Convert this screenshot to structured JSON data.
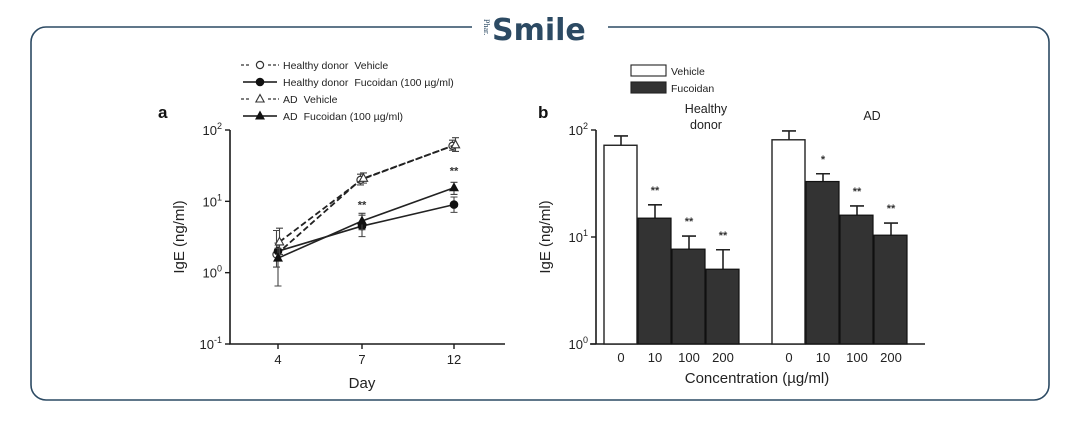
{
  "brand": {
    "prefix": "Phar.",
    "name": "Smile",
    "color": "#2c4a63"
  },
  "chart_data": [
    {
      "panel": "a",
      "type": "line",
      "title": "",
      "xlabel": "Day",
      "ylabel": "IgE (ng/ml)",
      "yscale": "log",
      "ylim": [
        0.1,
        100
      ],
      "y_ticks": [
        {
          "value": 100,
          "base": "10",
          "exp": "2"
        },
        {
          "value": 10,
          "base": "10",
          "exp": "1"
        },
        {
          "value": 1,
          "base": "10",
          "exp": "0"
        },
        {
          "value": 0.1,
          "base": "10",
          "exp": "-1"
        }
      ],
      "x": [
        4,
        7,
        12
      ],
      "x_tick_labels": [
        "4",
        "7",
        "12"
      ],
      "legend_placement": "top",
      "series": [
        {
          "name": "Healthy donor  Vehicle",
          "label_group": "Healthy donor",
          "label_treatment": "Vehicle",
          "marker": "open-circle",
          "line": "dashed",
          "values": [
            1.8,
            20,
            60
          ],
          "err_high": [
            3.9,
            24,
            72
          ],
          "err_low": [
            1.2,
            17,
            52
          ]
        },
        {
          "name": "Healthy donor  Fucoidan (100 µg/ml)",
          "label_group": "Healthy donor",
          "label_treatment": "Fucoidan (100 µg/ml)",
          "marker": "filled-circle",
          "line": "solid",
          "values": [
            2.0,
            4.5,
            9.0
          ],
          "err_high": [
            2.6,
            6.4,
            11.5
          ],
          "err_low": [
            1.5,
            3.2,
            7.0
          ]
        },
        {
          "name": "AD  Vehicle",
          "label_group": "AD",
          "label_treatment": "Vehicle",
          "marker": "open-triangle",
          "line": "dashed",
          "values": [
            2.7,
            21,
            62
          ],
          "err_high": [
            4.2,
            25,
            78
          ],
          "err_low": [
            1.8,
            18,
            50
          ]
        },
        {
          "name": "AD  Fucoidan (100 µg/ml)",
          "label_group": "AD",
          "label_treatment": "Fucoidan (100 µg/ml)",
          "marker": "filled-triangle",
          "line": "solid",
          "values": [
            1.6,
            5.3,
            15.5
          ],
          "err_high": [
            2.2,
            6.8,
            18.5
          ],
          "err_low": [
            0.65,
            4.0,
            12.5
          ]
        }
      ],
      "annotations": [
        {
          "x": 7,
          "text": "**",
          "y": 9.0
        },
        {
          "x": 12,
          "text": "**",
          "y": 27
        }
      ]
    },
    {
      "panel": "b",
      "type": "bar",
      "title": "",
      "xlabel": "Concentration (µg/ml)",
      "ylabel": "IgE (ng/ml)",
      "yscale": "log",
      "ylim": [
        1,
        100
      ],
      "y_ticks": [
        {
          "value": 100,
          "base": "10",
          "exp": "2"
        },
        {
          "value": 10,
          "base": "10",
          "exp": "1"
        },
        {
          "value": 1,
          "base": "10",
          "exp": "0"
        }
      ],
      "legend_placement": "top-left",
      "legend": [
        {
          "name": "Vehicle",
          "color": "#ffffff"
        },
        {
          "name": "Fucoidan",
          "color": "#333333"
        }
      ],
      "groups": [
        {
          "name": "Healthy donor",
          "name_lines": [
            "Healthy",
            "donor"
          ],
          "categories": [
            "0",
            "10",
            "100",
            "200"
          ],
          "treatments": [
            "Vehicle",
            "Fucoidan",
            "Fucoidan",
            "Fucoidan"
          ],
          "values": [
            72,
            15,
            7.7,
            5.0
          ],
          "err_high": [
            88,
            20,
            10.2,
            7.6
          ],
          "significance": [
            "",
            "**",
            "**",
            "**"
          ]
        },
        {
          "name": "AD",
          "name_lines": [
            "AD"
          ],
          "categories": [
            "0",
            "10",
            "100",
            "200"
          ],
          "treatments": [
            "Vehicle",
            "Fucoidan",
            "Fucoidan",
            "Fucoidan"
          ],
          "values": [
            81,
            33,
            16,
            10.4
          ],
          "err_high": [
            98,
            39,
            19.5,
            13.5
          ],
          "significance": [
            "",
            "*",
            "**",
            "**"
          ]
        }
      ]
    }
  ]
}
